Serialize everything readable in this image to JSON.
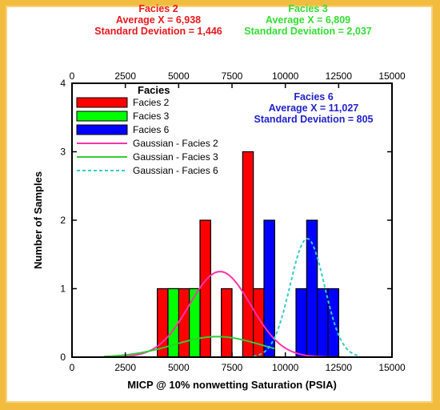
{
  "colors": {
    "frame": "#f2bd3f",
    "facies2": "#ff0000",
    "facies3": "#00ff00",
    "facies6": "#0000ff",
    "gauss2": "#ff33aa",
    "gauss3": "#33cc33",
    "gauss6": "#33cccc",
    "ann2": "#e8191d",
    "ann3": "#33dd33",
    "ann6": "#2222cc"
  },
  "annotations": {
    "facies2": {
      "title": "Facies 2",
      "avg": "Average X = 6,938",
      "sd": "Standard Deviation = 1,446"
    },
    "facies3": {
      "title": "Facies 3",
      "avg": "Average X = 6,809",
      "sd": "Standard Deviation = 2,037"
    },
    "facies6": {
      "title": "Facies 6",
      "avg": "Average X = 11,027",
      "sd": "Standard Deviation = 805"
    }
  },
  "chart_data": {
    "type": "bar",
    "xlabel": "MICP @ 10% nonwetting Saturation (PSIA)",
    "ylabel": "Number of Samples",
    "xlim": [
      0,
      15000
    ],
    "ylim": [
      0,
      4
    ],
    "x_ticks": [
      "0",
      "2500",
      "5000",
      "7500",
      "10000",
      "12500",
      "15000"
    ],
    "top_x_ticks": [
      "0",
      "2500",
      "5000",
      "7500",
      "10000",
      "12500",
      "15000"
    ],
    "y_ticks": [
      "0",
      "1",
      "2",
      "3",
      "4"
    ],
    "legend": {
      "title": "Facies",
      "position": "top-left",
      "entries": [
        "Facies 2",
        "Facies 3",
        "Facies 6",
        "Gaussian - Facies 2",
        "Gaussian - Facies 3",
        "Gaussian - Facies 6"
      ]
    },
    "bars": [
      {
        "series": "Facies 2",
        "x0": 4000,
        "x1": 4500,
        "value": 1
      },
      {
        "series": "Facies 2",
        "x0": 4500,
        "x1": 5000,
        "value": 1
      },
      {
        "series": "Facies 2",
        "x0": 5000,
        "x1": 5500,
        "value": 1
      },
      {
        "series": "Facies 2",
        "x0": 5500,
        "x1": 6000,
        "value": 1
      },
      {
        "series": "Facies 2",
        "x0": 6000,
        "x1": 6500,
        "value": 2
      },
      {
        "series": "Facies 2",
        "x0": 7000,
        "x1": 7500,
        "value": 1
      },
      {
        "series": "Facies 2",
        "x0": 8000,
        "x1": 8500,
        "value": 3
      },
      {
        "series": "Facies 2",
        "x0": 8500,
        "x1": 9000,
        "value": 1
      },
      {
        "series": "Facies 3",
        "x0": 4500,
        "x1": 5000,
        "value": 1
      },
      {
        "series": "Facies 3",
        "x0": 5500,
        "x1": 6000,
        "value": 1
      },
      {
        "series": "Facies 3",
        "x0": 9000,
        "x1": 9500,
        "value": 1
      },
      {
        "series": "Facies 6",
        "x0": 9000,
        "x1": 9500,
        "value": 2
      },
      {
        "series": "Facies 6",
        "x0": 10500,
        "x1": 11000,
        "value": 1
      },
      {
        "series": "Facies 6",
        "x0": 11000,
        "x1": 11500,
        "value": 2
      },
      {
        "series": "Facies 6",
        "x0": 11500,
        "x1": 12000,
        "value": 1
      },
      {
        "series": "Facies 6",
        "x0": 12000,
        "x1": 12500,
        "value": 1
      }
    ],
    "gaussians": [
      {
        "name": "Gaussian - Facies 2",
        "mean": 6938,
        "sd": 1446,
        "peak": 1.25,
        "x_range": [
          0,
          15000
        ],
        "style": "solid"
      },
      {
        "name": "Gaussian - Facies 3",
        "mean": 6809,
        "sd": 2037,
        "peak": 0.3,
        "x_range": [
          1500,
          9500
        ],
        "style": "solid"
      },
      {
        "name": "Gaussian - Facies 6",
        "mean": 11027,
        "sd": 805,
        "peak": 1.73,
        "x_range": [
          8500,
          13500
        ],
        "style": "dashed"
      }
    ]
  }
}
